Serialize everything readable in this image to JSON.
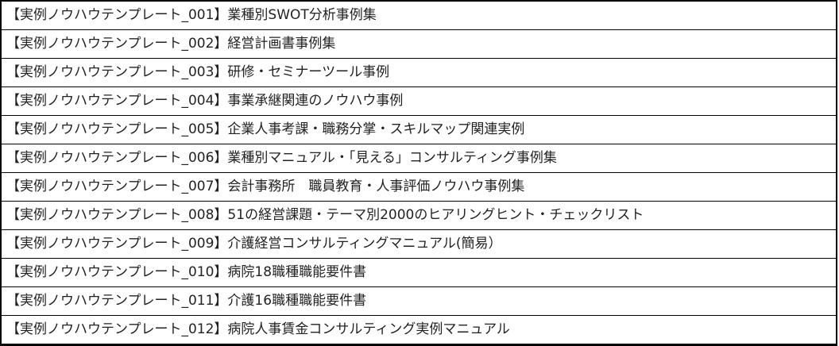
{
  "rows": [
    "【実例ノウハウテンプレート_001】業種別SWOT分析事例集",
    "【実例ノウハウテンプレート_002】経営計画書事例集",
    "【実例ノウハウテンプレート_003】研修・セミナーツール事例",
    "【実例ノウハウテンプレート_004】事業承継関連のノウハウ事例",
    "【実例ノウハウテンプレート_005】企業人事考課・職務分掌・スキルマップ関連実例",
    "【実例ノウハウテンプレート_006】業種別マニュアル・「見える」コンサルティング事例集",
    "【実例ノウハウテンプレート_007】会計事務所　職員教育・人事評価ノウハウ事例集",
    "【実例ノウハウテンプレート_008】51の経営課題・テーマ別2000のヒアリングヒント・チェックリスト",
    "【実例ノウハウテンプレート_009】介護経営コンサルティングマニュアル(簡易）",
    "【実例ノウハウテンプレート_010】病院18職種職能要件書",
    "【実例ノウハウテンプレート_011】介護16職種職能要件書",
    "【実例ノウハウテンプレート_012】病院人事賃金コンサルティング実例マニュアル"
  ]
}
